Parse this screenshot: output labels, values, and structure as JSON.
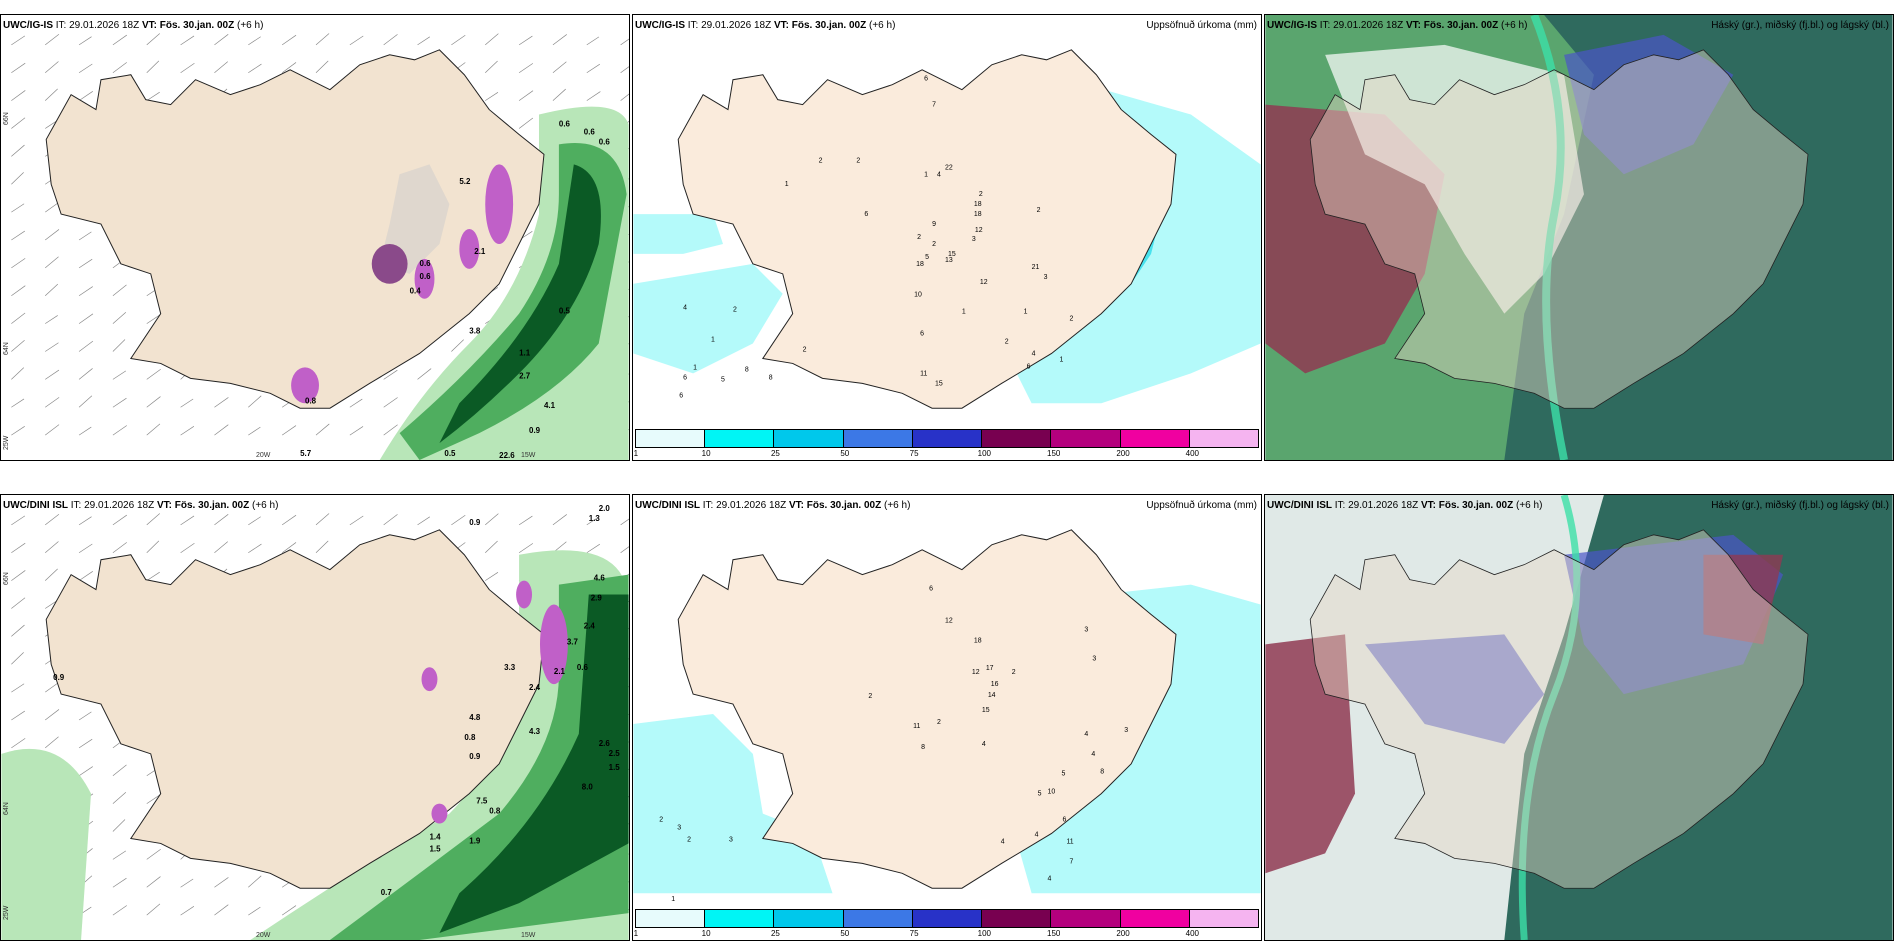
{
  "run_label": "IT:",
  "valid_label": "VT:",
  "panels": {
    "p1": {
      "model": "UWC/IG-IS",
      "it": "29.01.2026 18Z",
      "vt": "Fös. 30.jan. 00Z",
      "lead": "(+6 h)"
    },
    "p2": {
      "model": "UWC/IG-IS",
      "it": "29.01.2026 18Z",
      "vt": "Fös. 30.jan. 00Z",
      "lead": "(+6 h)",
      "right": "Uppsöfnuð úrkoma (mm)"
    },
    "p3": {
      "model": "UWC/IG-IS",
      "it": "29.01.2026 18Z",
      "vt": "Fös. 30.jan. 00Z",
      "lead": "(+6 h)",
      "right": "Háský (gr.), miðský (fj.bl.) og lágský (bl.)"
    },
    "p4": {
      "model": "UWC/DINI ISL",
      "it": "29.01.2026 18Z",
      "vt": "Fös. 30.jan. 00Z",
      "lead": "(+6 h)"
    },
    "p5": {
      "model": "UWC/DINI ISL",
      "it": "29.01.2026 18Z",
      "vt": "Fös. 30.jan. 00Z",
      "lead": "(+6 h)",
      "right": "Uppsöfnuð úrkoma (mm)"
    },
    "p6": {
      "model": "UWC/DINI ISL",
      "it": "29.01.2026 18Z",
      "vt": "Fös. 30.jan. 00Z",
      "lead": "(+6 h)",
      "right": "Háský (gr.), miðský (fj.bl.) og lágský (bl.)"
    }
  },
  "axes": {
    "lat66": "66N",
    "lat64": "64N",
    "lon20": "20W",
    "lon15": "15W",
    "lon25": "25W"
  },
  "colorbar": {
    "ticks": [
      "1",
      "10",
      "25",
      "50",
      "75",
      "100",
      "150",
      "200",
      "400"
    ],
    "colors": [
      "#e7fbfc",
      "#00f5f5",
      "#00c8eb",
      "#3c78e6",
      "#2832c8",
      "#780050",
      "#b4007d",
      "#f000a0",
      "#f5b4f0"
    ]
  },
  "labels": {
    "p1": [
      "0.6",
      "0.6",
      "0.6",
      "0.5",
      "1.1",
      "3.8",
      "2.7",
      "4.1",
      "0.9",
      "5.7",
      "0.5",
      "0.6",
      "0.4",
      "0.6",
      "2.1",
      "5.2",
      "0.8",
      "22.6"
    ],
    "p2": [
      "6",
      "7",
      "22",
      "4",
      "2",
      "2",
      "1",
      "1",
      "2",
      "6",
      "9",
      "13",
      "18",
      "18",
      "12",
      "2",
      "2",
      "3",
      "10",
      "11",
      "15",
      "21",
      "2",
      "1",
      "4",
      "2",
      "1",
      "6",
      "12",
      "3",
      "5",
      "2",
      "6",
      "1",
      "4",
      "2",
      "1",
      "1",
      "6",
      "6",
      "5",
      "8",
      "8",
      "2",
      "15",
      "18"
    ],
    "p4": [
      "0.9",
      "2.0",
      "1.3",
      "4.6",
      "2.9",
      "2.4",
      "3.7",
      "0.6",
      "2.6",
      "2.5",
      "1.5",
      "8.0",
      "7.5",
      "0.8",
      "1.4",
      "1.5",
      "0.7",
      "0.9",
      "3.3",
      "2.4",
      "2.1",
      "4.3",
      "0.8",
      "0.9",
      "1.9",
      "4.8"
    ],
    "p5": [
      "6",
      "12",
      "18",
      "3",
      "2",
      "12",
      "17",
      "16",
      "14",
      "15",
      "2",
      "2",
      "11",
      "8",
      "4",
      "3",
      "3",
      "4",
      "4",
      "8",
      "5",
      "10",
      "5",
      "6",
      "11",
      "4",
      "4",
      "7",
      "4",
      "3",
      "2",
      "2",
      "3",
      "1",
      "2",
      "2"
    ]
  }
}
